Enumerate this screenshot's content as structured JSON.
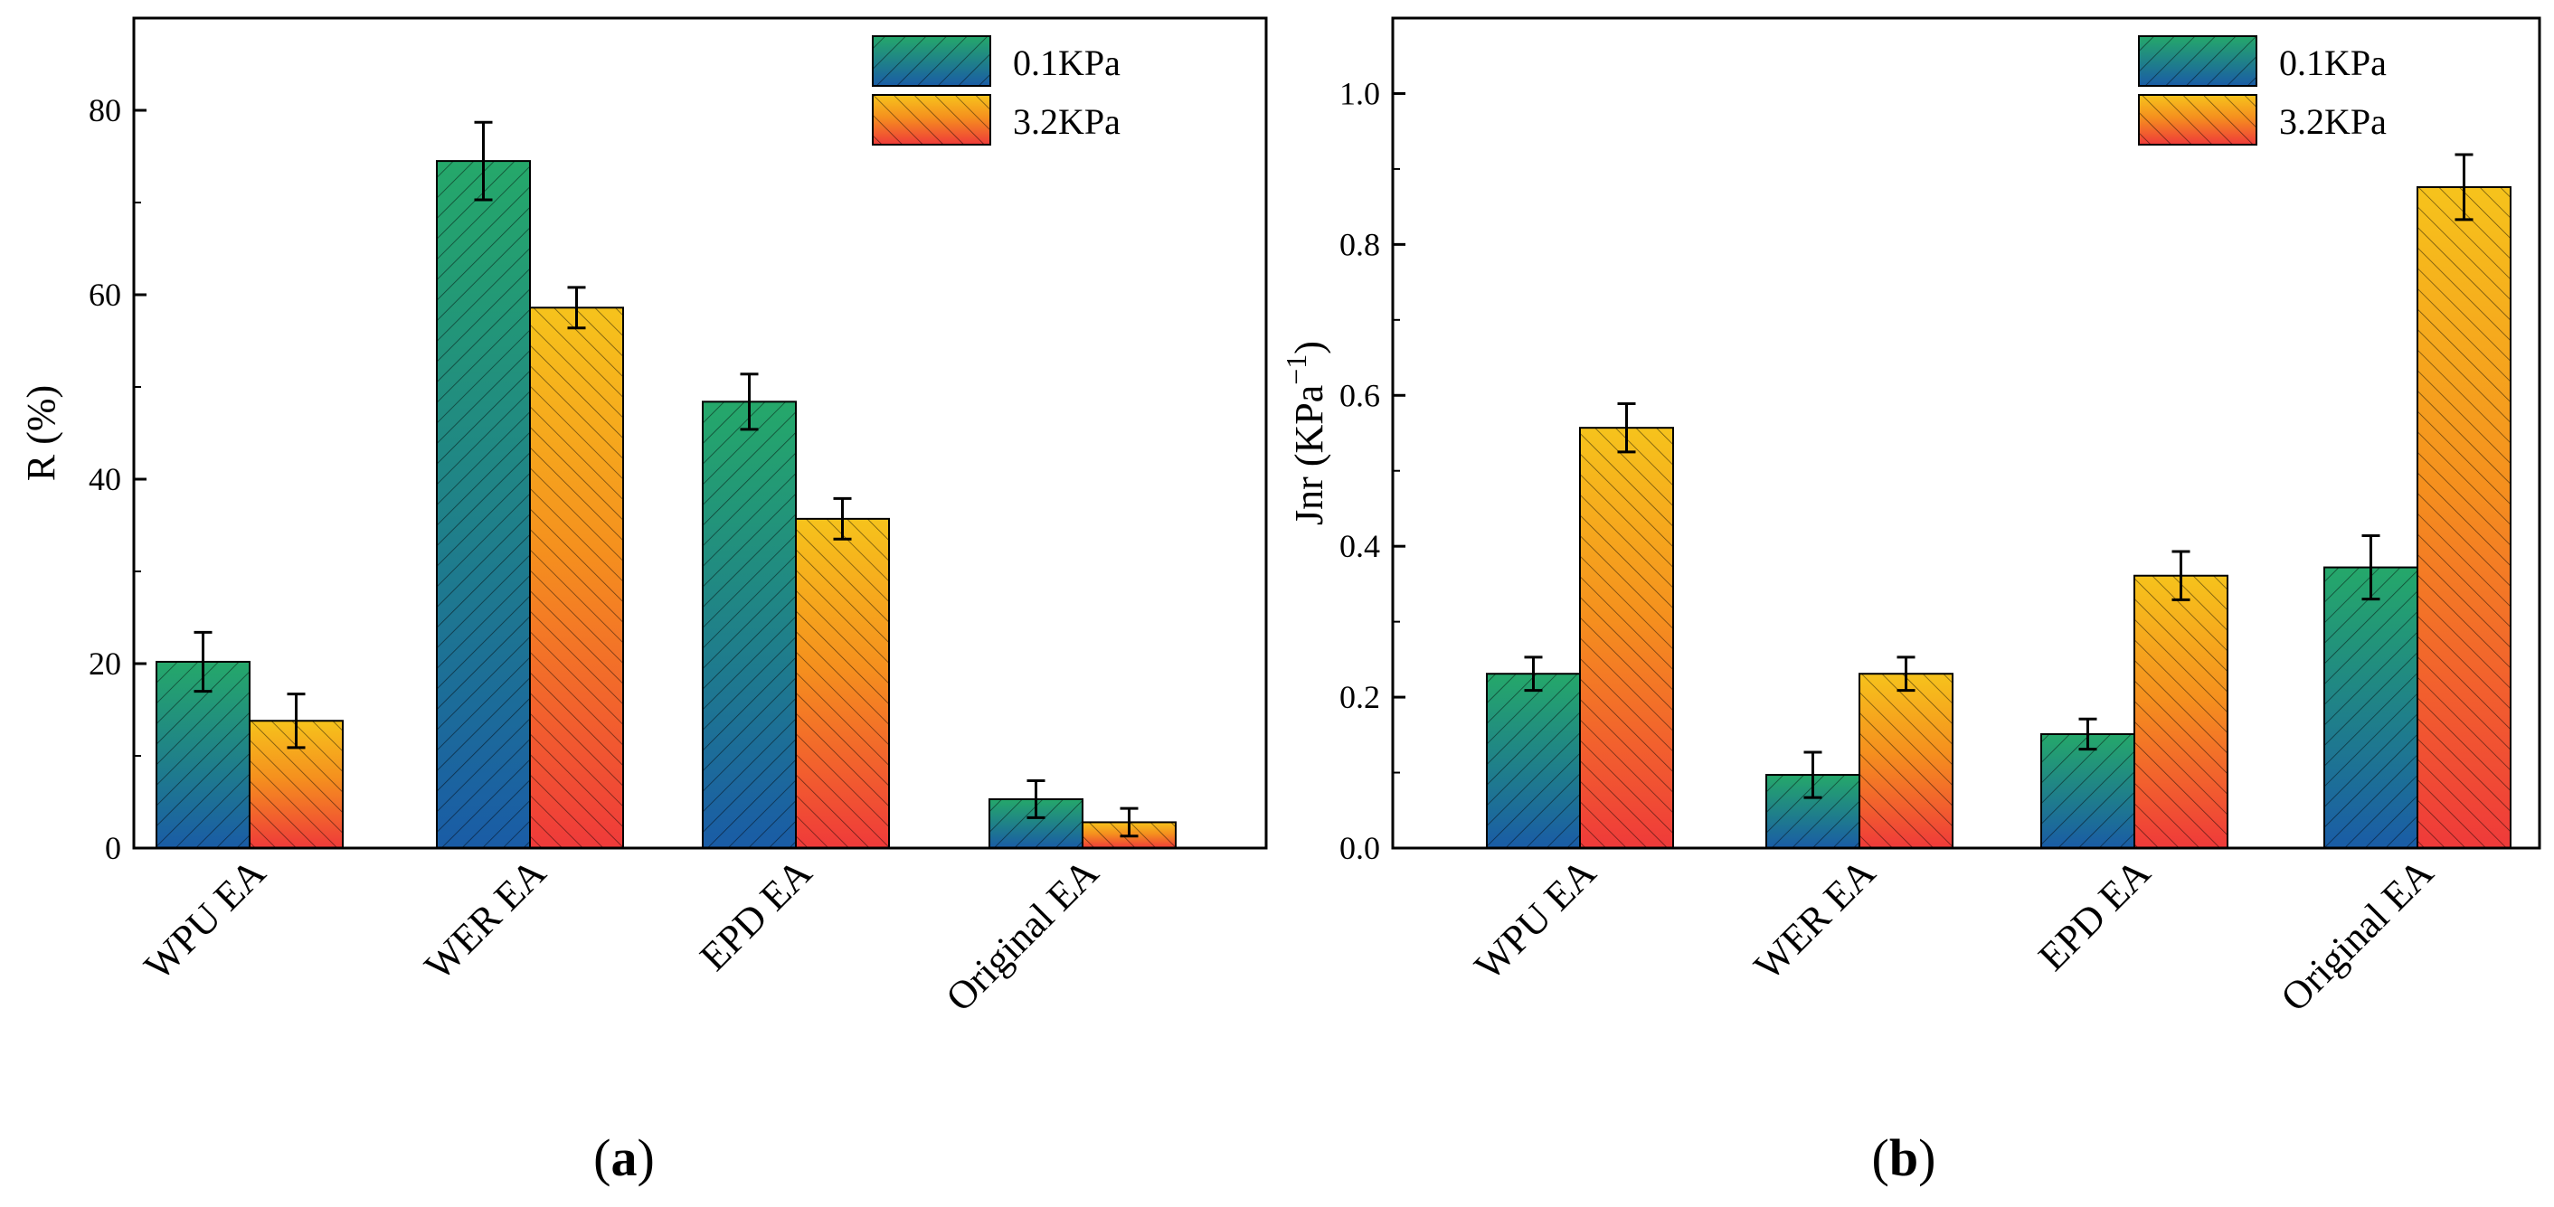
{
  "figure": {
    "panel_a_label": "a",
    "panel_b_label": "b",
    "colors": {
      "blue": "#1a5ca6",
      "green": "#25a86a",
      "yellow": "#f6c31c",
      "orange": "#f5901e",
      "red": "#ef3a3a",
      "axis": "#000000"
    }
  },
  "chart_data": [
    {
      "id": "a",
      "type": "bar",
      "title": "",
      "xlabel": "",
      "ylabel": "R (%)",
      "ylim": [
        0,
        90
      ],
      "yticks": [
        0,
        20,
        40,
        60,
        80
      ],
      "ytick_labels": [
        "0",
        "20",
        "40",
        "60",
        "80"
      ],
      "categories": [
        "WPU EA",
        "WER EA",
        "EPD EA",
        "Original EA"
      ],
      "series": [
        {
          "name": "0.1KPa",
          "values": [
            20.2,
            74.5,
            48.4,
            5.3
          ],
          "errors": [
            3.2,
            4.2,
            3.0,
            2.0
          ]
        },
        {
          "name": "3.2KPa",
          "values": [
            13.8,
            58.6,
            35.7,
            2.8
          ],
          "errors": [
            2.9,
            2.2,
            2.2,
            1.5
          ]
        }
      ],
      "legend": {
        "position": "top-right",
        "entries": [
          "0.1KPa",
          "3.2KPa"
        ]
      }
    },
    {
      "id": "b",
      "type": "bar",
      "title": "",
      "xlabel": "",
      "ylabel": "Jnr (KPa",
      "ylabel_superscript": "−1",
      "ylabel_close": ")",
      "ylim": [
        0,
        1.1
      ],
      "yticks": [
        0,
        0.2,
        0.4,
        0.6,
        0.8,
        1.0
      ],
      "ytick_labels": [
        "0.0",
        "0.2",
        "0.4",
        "0.6",
        "0.8",
        "1.0"
      ],
      "categories": [
        "WPU EA",
        "WER EA",
        "EPD EA",
        "Original EA"
      ],
      "series": [
        {
          "name": "0.1KPa",
          "values": [
            0.231,
            0.097,
            0.151,
            0.372
          ],
          "errors": [
            0.022,
            0.03,
            0.02,
            0.042
          ]
        },
        {
          "name": "3.2KPa",
          "values": [
            0.557,
            0.231,
            0.361,
            0.876
          ],
          "errors": [
            0.032,
            0.022,
            0.032,
            0.043
          ]
        }
      ],
      "legend": {
        "position": "top-right",
        "entries": [
          "0.1KPa",
          "3.2KPa"
        ]
      }
    }
  ]
}
